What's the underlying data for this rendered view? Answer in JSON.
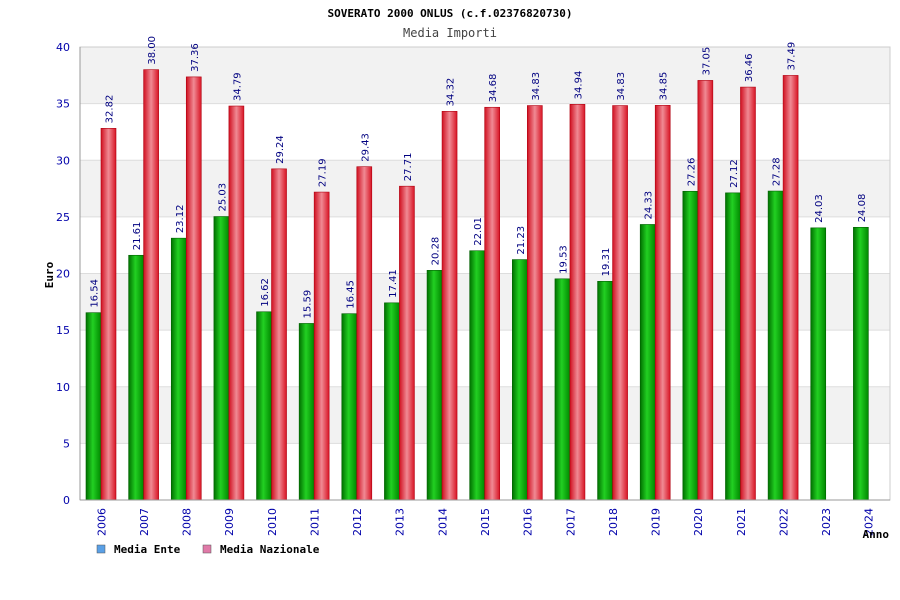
{
  "chart_data": {
    "type": "bar",
    "title": "SOVERATO 2000 ONLUS (c.f.02376820730)",
    "subtitle": "Media Importi",
    "ylabel": "Euro",
    "xlabel": "Anno",
    "ylim": [
      0,
      40
    ],
    "y_ticks": [
      "0",
      "5",
      "10",
      "15",
      "20",
      "25",
      "30",
      "35",
      "40"
    ],
    "grid": true,
    "legend_position": "bottom-left",
    "categories": [
      "2006",
      "2007",
      "2008",
      "2009",
      "2010",
      "2011",
      "2012",
      "2013",
      "2014",
      "2015",
      "2016",
      "2017",
      "2018",
      "2019",
      "2020",
      "2021",
      "2022",
      "2023",
      "2024"
    ],
    "series": [
      {
        "name": "Media Ente",
        "color": "#00a000",
        "legend_color": "#5aa0e6",
        "values": [
          16.54,
          21.61,
          23.12,
          25.03,
          16.62,
          15.59,
          16.45,
          17.41,
          20.28,
          22.01,
          21.23,
          19.53,
          19.31,
          24.33,
          27.26,
          27.12,
          27.28,
          24.03,
          24.08
        ],
        "labels": [
          "16.54",
          "21.61",
          "23.12",
          "25.03",
          "16.62",
          "15.59",
          "16.45",
          "17.41",
          "20.28",
          "22.01",
          "21.23",
          "19.53",
          "19.31",
          "24.33",
          "27.26",
          "27.12",
          "27.28",
          "24.03",
          "24.08"
        ]
      },
      {
        "name": "Media Nazionale",
        "color": "#e8202a",
        "legend_color": "#e07aa8",
        "values": [
          32.82,
          38.0,
          37.36,
          34.79,
          29.24,
          27.19,
          29.43,
          27.71,
          34.32,
          34.68,
          34.83,
          34.94,
          34.83,
          34.85,
          37.05,
          36.46,
          37.49,
          null,
          null
        ],
        "labels": [
          "32.82",
          "38.00",
          "37.36",
          "34.79",
          "29.24",
          "27.19",
          "29.43",
          "27.71",
          "34.32",
          "34.68",
          "34.83",
          "34.94",
          "34.83",
          "34.85",
          "37.05",
          "36.46",
          "37.49",
          null,
          null
        ]
      }
    ]
  }
}
